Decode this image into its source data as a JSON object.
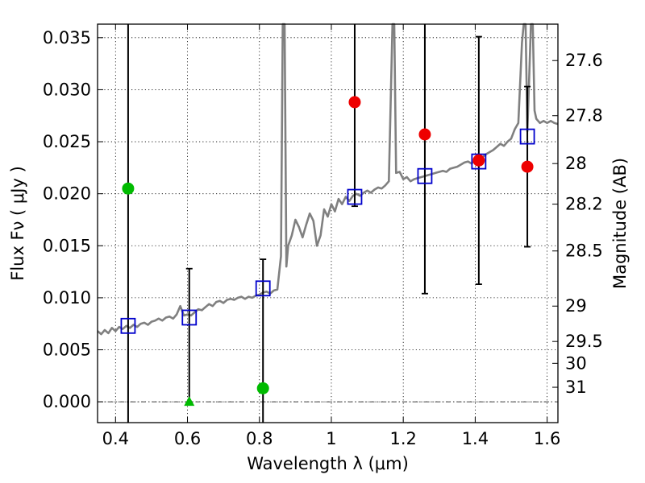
{
  "chart_data": {
    "type": "scatter",
    "xlabel": "Wavelength  λ (μm)",
    "ylabel": "Flux  Fν  ( μJy )",
    "y2label": "Magnitude (AB)",
    "xlim": [
      0.35,
      1.63
    ],
    "ylim": [
      -0.002,
      0.0363
    ],
    "grid": true,
    "x_ticks": [
      {
        "value": 0.4,
        "label": "0.4"
      },
      {
        "value": 0.6,
        "label": "0.6"
      },
      {
        "value": 0.8,
        "label": "0.8"
      },
      {
        "value": 1.0,
        "label": "1"
      },
      {
        "value": 1.2,
        "label": "1.2"
      },
      {
        "value": 1.4,
        "label": "1.4"
      },
      {
        "value": 1.6,
        "label": "1.6"
      }
    ],
    "y_ticks": [
      {
        "value": 0.0,
        "label": "0.000"
      },
      {
        "value": 0.005,
        "label": "0.005"
      },
      {
        "value": 0.01,
        "label": "0.010"
      },
      {
        "value": 0.015,
        "label": "0.015"
      },
      {
        "value": 0.02,
        "label": "0.020"
      },
      {
        "value": 0.025,
        "label": "0.025"
      },
      {
        "value": 0.03,
        "label": "0.030"
      },
      {
        "value": 0.035,
        "label": "0.035"
      }
    ],
    "y2_ticks": [
      {
        "flux": 0.0328,
        "label": "27.6"
      },
      {
        "flux": 0.0275,
        "label": "27.8"
      },
      {
        "flux": 0.0229,
        "label": "28"
      },
      {
        "flux": 0.019,
        "label": "28.2"
      },
      {
        "flux": 0.0145,
        "label": "28.5"
      },
      {
        "flux": 0.0092,
        "label": "29"
      },
      {
        "flux": 0.0058,
        "label": "29.5"
      },
      {
        "flux": 0.0037,
        "label": "30"
      },
      {
        "flux": 0.0014,
        "label": "31"
      }
    ],
    "colors": {
      "spectrum": "#808080",
      "model_boxes": "#0000cc",
      "green_points": "#00bb00",
      "red_points": "#ee0000",
      "errorbars": "#000000"
    },
    "spectrum": [
      [
        0.35,
        0.0068
      ],
      [
        0.36,
        0.0065
      ],
      [
        0.37,
        0.0069
      ],
      [
        0.38,
        0.0066
      ],
      [
        0.39,
        0.0071
      ],
      [
        0.4,
        0.0068
      ],
      [
        0.41,
        0.0072
      ],
      [
        0.42,
        0.007
      ],
      [
        0.43,
        0.0073
      ],
      [
        0.44,
        0.0071
      ],
      [
        0.45,
        0.0074
      ],
      [
        0.46,
        0.0072
      ],
      [
        0.47,
        0.0075
      ],
      [
        0.48,
        0.0076
      ],
      [
        0.49,
        0.0074
      ],
      [
        0.5,
        0.0077
      ],
      [
        0.51,
        0.0078
      ],
      [
        0.52,
        0.008
      ],
      [
        0.53,
        0.0078
      ],
      [
        0.54,
        0.0081
      ],
      [
        0.55,
        0.0082
      ],
      [
        0.56,
        0.008
      ],
      [
        0.57,
        0.0084
      ],
      [
        0.58,
        0.0092
      ],
      [
        0.59,
        0.0083
      ],
      [
        0.6,
        0.0084
      ],
      [
        0.61,
        0.0083
      ],
      [
        0.62,
        0.0086
      ],
      [
        0.63,
        0.0089
      ],
      [
        0.64,
        0.0088
      ],
      [
        0.65,
        0.0091
      ],
      [
        0.66,
        0.0094
      ],
      [
        0.67,
        0.0092
      ],
      [
        0.68,
        0.0096
      ],
      [
        0.69,
        0.0097
      ],
      [
        0.7,
        0.0095
      ],
      [
        0.71,
        0.0098
      ],
      [
        0.72,
        0.0099
      ],
      [
        0.73,
        0.0098
      ],
      [
        0.74,
        0.01
      ],
      [
        0.75,
        0.0101
      ],
      [
        0.76,
        0.0099
      ],
      [
        0.77,
        0.0101
      ],
      [
        0.78,
        0.01
      ],
      [
        0.79,
        0.0102
      ],
      [
        0.8,
        0.0103
      ],
      [
        0.81,
        0.0105
      ],
      [
        0.82,
        0.0106
      ],
      [
        0.83,
        0.0104
      ],
      [
        0.84,
        0.0107
      ],
      [
        0.85,
        0.0108
      ],
      [
        0.86,
        0.014
      ],
      [
        0.865,
        0.0365
      ],
      [
        0.87,
        0.0365
      ],
      [
        0.875,
        0.013
      ],
      [
        0.88,
        0.015
      ],
      [
        0.89,
        0.016
      ],
      [
        0.9,
        0.0175
      ],
      [
        0.91,
        0.0168
      ],
      [
        0.92,
        0.0158
      ],
      [
        0.93,
        0.017
      ],
      [
        0.94,
        0.0181
      ],
      [
        0.95,
        0.0174
      ],
      [
        0.96,
        0.015
      ],
      [
        0.97,
        0.016
      ],
      [
        0.98,
        0.0185
      ],
      [
        0.99,
        0.0178
      ],
      [
        1.0,
        0.019
      ],
      [
        1.01,
        0.0183
      ],
      [
        1.02,
        0.0195
      ],
      [
        1.03,
        0.019
      ],
      [
        1.04,
        0.0197
      ],
      [
        1.05,
        0.0193
      ],
      [
        1.06,
        0.0198
      ],
      [
        1.07,
        0.02
      ],
      [
        1.08,
        0.0198
      ],
      [
        1.09,
        0.0201
      ],
      [
        1.1,
        0.0203
      ],
      [
        1.11,
        0.0201
      ],
      [
        1.12,
        0.0204
      ],
      [
        1.13,
        0.0206
      ],
      [
        1.14,
        0.0205
      ],
      [
        1.15,
        0.0208
      ],
      [
        1.16,
        0.0212
      ],
      [
        1.17,
        0.0365
      ],
      [
        1.175,
        0.0365
      ],
      [
        1.18,
        0.022
      ],
      [
        1.19,
        0.0221
      ],
      [
        1.2,
        0.0214
      ],
      [
        1.21,
        0.0216
      ],
      [
        1.22,
        0.0212
      ],
      [
        1.23,
        0.0214
      ],
      [
        1.24,
        0.0215
      ],
      [
        1.25,
        0.0216
      ],
      [
        1.26,
        0.0217
      ],
      [
        1.27,
        0.0218
      ],
      [
        1.28,
        0.0219
      ],
      [
        1.29,
        0.022
      ],
      [
        1.3,
        0.0221
      ],
      [
        1.31,
        0.0222
      ],
      [
        1.32,
        0.0221
      ],
      [
        1.33,
        0.0224
      ],
      [
        1.34,
        0.0225
      ],
      [
        1.35,
        0.0226
      ],
      [
        1.36,
        0.0228
      ],
      [
        1.37,
        0.023
      ],
      [
        1.38,
        0.0231
      ],
      [
        1.39,
        0.0229
      ],
      [
        1.4,
        0.0232
      ],
      [
        1.41,
        0.0233
      ],
      [
        1.42,
        0.0235
      ],
      [
        1.43,
        0.0238
      ],
      [
        1.44,
        0.024
      ],
      [
        1.45,
        0.0242
      ],
      [
        1.46,
        0.0245
      ],
      [
        1.47,
        0.0248
      ],
      [
        1.48,
        0.0246
      ],
      [
        1.49,
        0.025
      ],
      [
        1.5,
        0.0253
      ],
      [
        1.51,
        0.0262
      ],
      [
        1.52,
        0.0268
      ],
      [
        1.53,
        0.0345
      ],
      [
        1.535,
        0.0365
      ],
      [
        1.54,
        0.0365
      ],
      [
        1.545,
        0.026
      ],
      [
        1.55,
        0.031
      ],
      [
        1.555,
        0.0365
      ],
      [
        1.56,
        0.0365
      ],
      [
        1.565,
        0.028
      ],
      [
        1.57,
        0.0272
      ],
      [
        1.58,
        0.0268
      ],
      [
        1.59,
        0.027
      ],
      [
        1.6,
        0.0268
      ],
      [
        1.61,
        0.027
      ],
      [
        1.62,
        0.0268
      ],
      [
        1.63,
        0.0267
      ]
    ],
    "model_boxes": [
      {
        "x": 0.435,
        "y": 0.0073
      },
      {
        "x": 0.605,
        "y": 0.0081
      },
      {
        "x": 0.81,
        "y": 0.0109
      },
      {
        "x": 1.065,
        "y": 0.0197
      },
      {
        "x": 1.26,
        "y": 0.0217
      },
      {
        "x": 1.41,
        "y": 0.0231
      },
      {
        "x": 1.545,
        "y": 0.0255
      }
    ],
    "errorbars": [
      {
        "x": 0.435,
        "low": -0.002,
        "high": 0.0363,
        "caps": false
      },
      {
        "x": 0.605,
        "low": -0.0003,
        "high": 0.0128,
        "caps": true
      },
      {
        "x": 0.81,
        "low": -0.002,
        "high": 0.0137,
        "caps": true
      },
      {
        "x": 1.065,
        "low": 0.0188,
        "high": 0.0363,
        "caps": true
      },
      {
        "x": 1.26,
        "low": 0.0104,
        "high": 0.0363,
        "caps": true
      },
      {
        "x": 1.41,
        "low": 0.0113,
        "high": 0.0351,
        "caps": true
      },
      {
        "x": 1.545,
        "low": 0.0149,
        "high": 0.0303,
        "caps": true
      }
    ],
    "green_points": [
      {
        "x": 0.435,
        "y": 0.0205
      },
      {
        "x": 0.81,
        "y": 0.0013
      }
    ],
    "green_upper_limit": {
      "x": 0.605,
      "y": 0.0
    },
    "red_points": [
      {
        "x": 1.065,
        "y": 0.0288
      },
      {
        "x": 1.26,
        "y": 0.0257
      },
      {
        "x": 1.41,
        "y": 0.0232
      },
      {
        "x": 1.545,
        "y": 0.0226
      }
    ]
  }
}
